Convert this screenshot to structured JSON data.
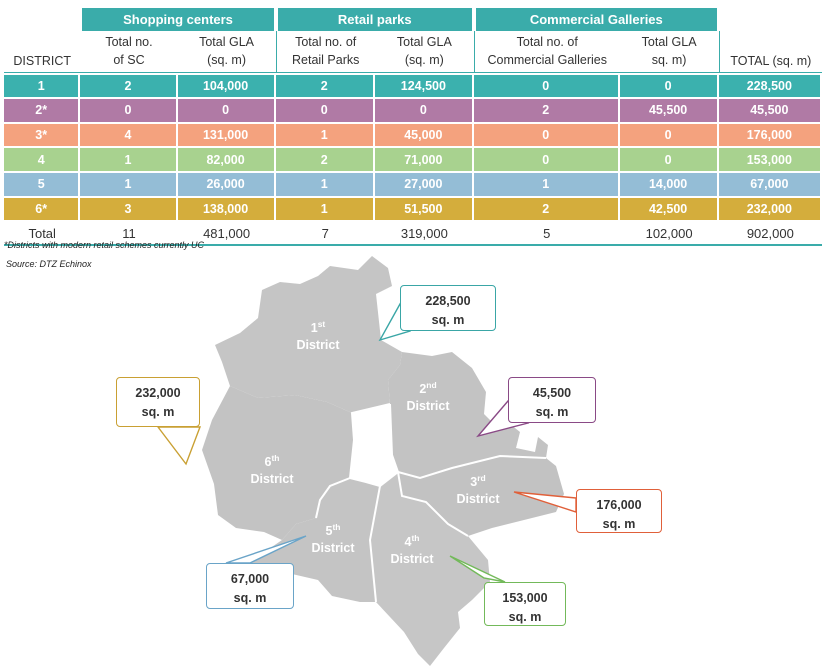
{
  "table": {
    "groups": {
      "shopping_centers": "Shopping centers",
      "retail_parks": "Retail parks",
      "commercial_galleries": "Commercial Galleries"
    },
    "subheaders": {
      "district": "DISTRICT",
      "sc_count_l1": "Total no.",
      "sc_count_l2": "of SC",
      "sc_gla_l1": "Total GLA",
      "sc_gla_l2": "(sq. m)",
      "rp_count_l1": "Total no. of",
      "rp_count_l2": "Retail Parks",
      "rp_gla_l1": "Total GLA",
      "rp_gla_l2": "(sq. m)",
      "cg_count_l1": "Total no. of",
      "cg_count_l2": "Commercial Galleries",
      "cg_gla_l1": "Total GLA",
      "cg_gla_l2": "sq. m)",
      "total": "TOTAL (sq. m)"
    },
    "rows": [
      {
        "district": "1",
        "color": "#3bb1ae",
        "sc": "2",
        "sc_gla": "104,000",
        "rp": "2",
        "rp_gla": "124,500",
        "cg": "0",
        "cg_gla": "0",
        "total": "228,500"
      },
      {
        "district": "2*",
        "color": "#b07aa5",
        "sc": "0",
        "sc_gla": "0",
        "rp": "0",
        "rp_gla": "0",
        "cg": "2",
        "cg_gla": "45,500",
        "total": "45,500"
      },
      {
        "district": "3*",
        "color": "#f4a27e",
        "sc": "4",
        "sc_gla": "131,000",
        "rp": "1",
        "rp_gla": "45,000",
        "cg": "0",
        "cg_gla": "0",
        "total": "176,000"
      },
      {
        "district": "4",
        "color": "#a8d28f",
        "sc": "1",
        "sc_gla": "82,000",
        "rp": "2",
        "rp_gla": "71,000",
        "cg": "0",
        "cg_gla": "0",
        "total": "153,000"
      },
      {
        "district": "5",
        "color": "#94bdd6",
        "sc": "1",
        "sc_gla": "26,000",
        "rp": "1",
        "rp_gla": "27,000",
        "cg": "1",
        "cg_gla": "14,000",
        "total": "67,000"
      },
      {
        "district": "6*",
        "color": "#d4ad3c",
        "sc": "3",
        "sc_gla": "138,000",
        "rp": "1",
        "rp_gla": "51,500",
        "cg": "2",
        "cg_gla": "42,500",
        "total": "232,000"
      }
    ],
    "total_row": {
      "district": "Total",
      "sc": "11",
      "sc_gla": "481,000",
      "rp": "7",
      "rp_gla": "319,000",
      "cg": "5",
      "cg_gla": "102,000",
      "total": "902,000"
    }
  },
  "notes": {
    "footnote": "*Districts with modern retail schemes currently UC",
    "source": "Source: DTZ Echinox"
  },
  "map": {
    "districts": [
      {
        "num": "1",
        "sup": "st",
        "word": "District",
        "fill": "#c5c5c5"
      },
      {
        "num": "2",
        "sup": "nd",
        "word": "District",
        "fill": "#c3c3c3"
      },
      {
        "num": "3",
        "sup": "rd",
        "word": "District",
        "fill": "#c2c2c2"
      },
      {
        "num": "4",
        "sup": "th",
        "word": "District",
        "fill": "#c6c6c6"
      },
      {
        "num": "5",
        "sup": "th",
        "word": "District",
        "fill": "#c4c4c4"
      },
      {
        "num": "6",
        "sup": "th",
        "word": "District",
        "fill": "#c3c3c3"
      }
    ],
    "callouts": [
      {
        "value": "228,500",
        "unit": "sq. m",
        "color": "#3aa6a6"
      },
      {
        "value": "45,500",
        "unit": "sq. m",
        "color": "#8a4a86"
      },
      {
        "value": "176,000",
        "unit": "sq. m",
        "color": "#e0603a"
      },
      {
        "value": "153,000",
        "unit": "sq. m",
        "color": "#73b95a"
      },
      {
        "value": "67,000",
        "unit": "sq. m",
        "color": "#6aa4c8"
      },
      {
        "value": "232,000",
        "unit": "sq. m",
        "color": "#c9a033"
      }
    ]
  },
  "chart_data": {
    "type": "table",
    "columns": [
      "DISTRICT",
      "Total no. of SC",
      "Total GLA (sq. m)",
      "Total no. of Retail Parks",
      "Total GLA (sq. m)",
      "Total no. of Commercial Galleries",
      "Total GLA sq. m)",
      "TOTAL (sq. m)"
    ],
    "rows": [
      [
        "1",
        2,
        104000,
        2,
        124500,
        0,
        0,
        228500
      ],
      [
        "2*",
        0,
        0,
        0,
        0,
        2,
        45500,
        45500
      ],
      [
        "3*",
        4,
        131000,
        1,
        45000,
        0,
        0,
        176000
      ],
      [
        "4",
        1,
        82000,
        2,
        71000,
        0,
        0,
        153000
      ],
      [
        "5",
        1,
        26000,
        1,
        27000,
        1,
        14000,
        67000
      ],
      [
        "6*",
        3,
        138000,
        1,
        51500,
        2,
        42500,
        232000
      ],
      [
        "Total",
        11,
        481000,
        7,
        319000,
        5,
        102000,
        902000
      ]
    ]
  }
}
